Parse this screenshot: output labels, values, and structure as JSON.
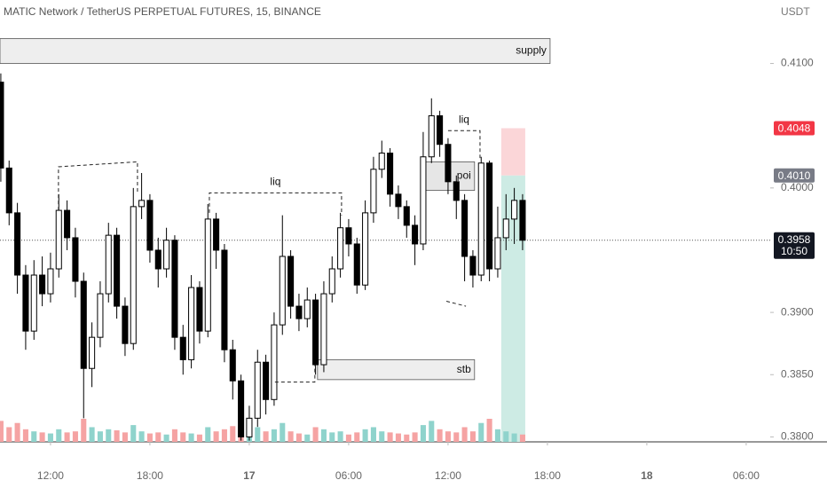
{
  "chart_data": {
    "type": "candlestick",
    "title": "MATIC Network / TetherUS PERPETUAL FUTURES, 15, BINANCE",
    "y_unit": "USDT",
    "xlim": [
      8.95,
      55.45
    ],
    "ylim": [
      0.3796,
      0.4151
    ],
    "xticks": [
      {
        "value": 12,
        "label": "12:00"
      },
      {
        "value": 18,
        "label": "18:00"
      },
      {
        "value": 24,
        "label": "17"
      },
      {
        "value": 30,
        "label": "06:00"
      },
      {
        "value": 36,
        "label": "12:00"
      },
      {
        "value": 42,
        "label": "18:00"
      },
      {
        "value": 48,
        "label": "18"
      },
      {
        "value": 54,
        "label": "06:00"
      }
    ],
    "yticks": [
      {
        "value": 0.41,
        "label": "0.4100"
      },
      {
        "value": 0.4,
        "label": "0.4000"
      },
      {
        "value": 0.39,
        "label": "0.3900"
      },
      {
        "value": 0.385,
        "label": "0.3850"
      },
      {
        "value": 0.38,
        "label": "0.3800"
      }
    ],
    "up_color": "#ffffff",
    "down_color": "#000000",
    "volume_up_color": "#8fd3cc",
    "volume_down_color": "#f5a3a3",
    "candles": {
      "x": [
        9,
        9.5,
        10,
        10.5,
        11,
        11.5,
        12,
        12.5,
        13,
        13.5,
        14,
        14.5,
        15,
        15.5,
        16,
        16.5,
        17,
        17.5,
        18,
        18.5,
        19,
        19.5,
        20,
        20.5,
        21,
        21.5,
        22,
        22.5,
        23,
        23.5,
        24,
        24.5,
        25,
        25.5,
        26,
        26.5,
        27,
        27.5,
        28,
        28.5,
        29,
        29.5,
        30,
        30.5,
        31,
        31.5,
        32,
        32.5,
        33,
        33.5,
        34,
        34.5,
        35,
        35.5,
        36,
        36.5,
        37,
        37.5,
        38,
        38.5,
        39,
        39.5,
        40,
        40.5
      ],
      "open": [
        0.4085,
        0.4016,
        0.398,
        0.393,
        0.3885,
        0.393,
        0.3915,
        0.3935,
        0.3982,
        0.396,
        0.3925,
        0.3855,
        0.388,
        0.3915,
        0.3962,
        0.3905,
        0.3875,
        0.3985,
        0.399,
        0.395,
        0.3935,
        0.3958,
        0.388,
        0.3862,
        0.392,
        0.3885,
        0.3975,
        0.395,
        0.387,
        0.3845,
        0.38,
        0.3815,
        0.386,
        0.383,
        0.389,
        0.3945,
        0.3905,
        0.3895,
        0.391,
        0.3858,
        0.3915,
        0.3935,
        0.3968,
        0.3955,
        0.3922,
        0.398,
        0.4015,
        0.4028,
        0.3995,
        0.3985,
        0.397,
        0.3955,
        0.4025,
        0.4058,
        0.4035,
        0.4005,
        0.399,
        0.3945,
        0.393,
        0.402,
        0.3935,
        0.396,
        0.3975,
        0.399
      ],
      "high": [
        0.4092,
        0.4022,
        0.3988,
        0.3938,
        0.3942,
        0.3945,
        0.3948,
        0.3995,
        0.399,
        0.3968,
        0.3932,
        0.3892,
        0.3925,
        0.3972,
        0.3968,
        0.3912,
        0.4,
        0.4012,
        0.3995,
        0.396,
        0.3968,
        0.3962,
        0.389,
        0.393,
        0.3925,
        0.3987,
        0.398,
        0.3955,
        0.3878,
        0.385,
        0.3825,
        0.387,
        0.3866,
        0.39,
        0.3978,
        0.395,
        0.3915,
        0.392,
        0.3915,
        0.3925,
        0.3945,
        0.398,
        0.3975,
        0.396,
        0.399,
        0.4025,
        0.4038,
        0.4032,
        0.4002,
        0.399,
        0.3978,
        0.4045,
        0.4072,
        0.4062,
        0.404,
        0.401,
        0.3995,
        0.395,
        0.4025,
        0.4022,
        0.3985,
        0.3995,
        0.4,
        0.3995
      ],
      "low": [
        0.4005,
        0.397,
        0.3915,
        0.387,
        0.3878,
        0.3905,
        0.3908,
        0.3928,
        0.395,
        0.3912,
        0.3815,
        0.384,
        0.3872,
        0.3908,
        0.3895,
        0.3865,
        0.387,
        0.3975,
        0.394,
        0.392,
        0.3928,
        0.387,
        0.385,
        0.3855,
        0.3875,
        0.388,
        0.3935,
        0.386,
        0.383,
        0.3797,
        0.3797,
        0.3808,
        0.3818,
        0.3825,
        0.3882,
        0.3895,
        0.3885,
        0.3888,
        0.385,
        0.3852,
        0.3908,
        0.3928,
        0.3945,
        0.3915,
        0.3918,
        0.3972,
        0.4008,
        0.3985,
        0.3975,
        0.396,
        0.3938,
        0.395,
        0.402,
        0.4025,
        0.3995,
        0.3975,
        0.3925,
        0.392,
        0.3925,
        0.3925,
        0.3928,
        0.395,
        0.3955,
        0.395
      ],
      "close": [
        0.4016,
        0.398,
        0.393,
        0.3885,
        0.393,
        0.3915,
        0.3935,
        0.3982,
        0.396,
        0.3925,
        0.3855,
        0.388,
        0.3915,
        0.3962,
        0.3905,
        0.3875,
        0.3985,
        0.399,
        0.395,
        0.3935,
        0.3958,
        0.388,
        0.3862,
        0.392,
        0.3885,
        0.3975,
        0.395,
        0.387,
        0.3845,
        0.38,
        0.3815,
        0.386,
        0.383,
        0.389,
        0.3945,
        0.3905,
        0.3895,
        0.391,
        0.3858,
        0.3915,
        0.3935,
        0.3968,
        0.3955,
        0.3922,
        0.398,
        0.4015,
        0.4028,
        0.3995,
        0.3985,
        0.397,
        0.3955,
        0.4025,
        0.4058,
        0.4035,
        0.4005,
        0.399,
        0.3945,
        0.393,
        0.402,
        0.3935,
        0.396,
        0.3975,
        0.399,
        0.3958
      ],
      "volume": [
        20,
        14,
        18,
        12,
        10,
        9,
        8,
        12,
        9,
        10,
        22,
        14,
        10,
        12,
        11,
        9,
        16,
        10,
        8,
        9,
        7,
        12,
        9,
        8,
        7,
        14,
        10,
        12,
        15,
        20,
        16,
        14,
        10,
        12,
        18,
        10,
        8,
        7,
        14,
        12,
        9,
        10,
        7,
        9,
        12,
        14,
        10,
        9,
        8,
        7,
        9,
        16,
        20,
        12,
        10,
        9,
        14,
        10,
        18,
        22,
        12,
        10,
        8,
        7
      ]
    },
    "zones": [
      {
        "label": "supply",
        "x": [
          8.95,
          42.16
        ],
        "y": [
          0.412,
          0.41
        ],
        "color": "#eeeeee"
      },
      {
        "label": "stb",
        "x": [
          28.12,
          37.6
        ],
        "y": [
          0.3862,
          0.3846
        ],
        "color": "#eeeeee"
      },
      {
        "label": "poi",
        "x": [
          34.55,
          37.6
        ],
        "y": [
          0.4021,
          0.3998
        ],
        "color": "#e6e6e6"
      }
    ],
    "position": {
      "x": [
        39.21,
        40.66
      ],
      "entry": 0.401,
      "target": 0.4048,
      "stop": 0.3796,
      "target_color": "#fbd6d8",
      "stop_color": "#cdebe4"
    },
    "dashed_lines": [
      {
        "label": "",
        "x": [
          12.48,
          12.48,
          17.25,
          17.25
        ],
        "y": [
          0.3982,
          0.4017,
          0.4021,
          0.3995
        ]
      },
      {
        "label": "liq",
        "x": [
          21.59,
          21.59,
          29.57,
          29.57
        ],
        "y": [
          0.398,
          0.3996,
          0.3996,
          0.3978
        ]
      },
      {
        "label": "liq",
        "x": [
          36.0,
          37.93,
          37.93
        ],
        "y": [
          0.4046,
          0.4046,
          0.4024
        ]
      },
      {
        "label": "",
        "x": [
          25.55,
          27.96,
          27.96
        ],
        "y": [
          0.3844,
          0.3844,
          0.3858
        ]
      },
      {
        "label": "",
        "x": [
          35.9,
          37.08
        ],
        "y": [
          0.3909,
          0.3905
        ]
      }
    ],
    "price_labels": [
      {
        "value": 0.4048,
        "label": "0.4048",
        "color": "#f23645"
      },
      {
        "value": 0.401,
        "label": "0.4010",
        "color": "#787b86"
      }
    ],
    "last_price": {
      "value": 0.3958,
      "label": "0.3958",
      "countdown": "10:50",
      "color": "#131722"
    }
  }
}
